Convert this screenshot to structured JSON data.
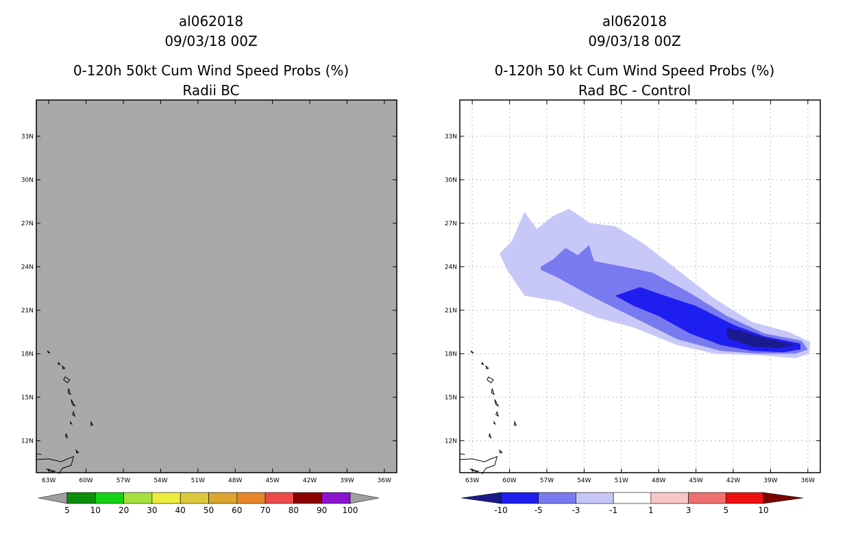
{
  "chart_data": [
    {
      "type": "heatmap",
      "storm_id": "al062018",
      "datetime": "09/03/18 00Z",
      "title": "0-120h 50kt Cum Wind Speed Probs (%)",
      "subtitle": "Radii BC",
      "background": "#a9a9a9",
      "gridlines": false,
      "x_ticks": [
        "63W",
        "60W",
        "57W",
        "54W",
        "51W",
        "48W",
        "45W",
        "42W",
        "39W",
        "36W"
      ],
      "y_ticks": [
        "12N",
        "15N",
        "18N",
        "21N",
        "24N",
        "27N",
        "30N",
        "33N"
      ],
      "lon_range": [
        -64,
        -35
      ],
      "lat_range": [
        9.8,
        35.5
      ],
      "colorbar": {
        "labels": [
          "5",
          "10",
          "20",
          "30",
          "40",
          "50",
          "60",
          "70",
          "80",
          "90",
          "100"
        ],
        "colors": [
          "#a0a0a0",
          "#0b8f0b",
          "#12d412",
          "#a6e03c",
          "#ecec3c",
          "#dcc83c",
          "#dca630",
          "#e8862c",
          "#ee4c4c",
          "#8c0000",
          "#8c12d0",
          "#a0a0a0"
        ]
      },
      "contours": []
    },
    {
      "type": "heatmap",
      "storm_id": "al062018",
      "datetime": "09/03/18 00Z",
      "title": "0-120h 50 kt Cum Wind Speed Probs (%)",
      "subtitle": "Rad BC - Control",
      "background": "#ffffff",
      "gridlines": true,
      "x_ticks": [
        "63W",
        "60W",
        "57W",
        "54W",
        "51W",
        "48W",
        "45W",
        "42W",
        "39W",
        "36W"
      ],
      "y_ticks": [
        "12N",
        "15N",
        "18N",
        "21N",
        "24N",
        "27N",
        "30N",
        "33N"
      ],
      "lon_range": [
        -64,
        -35
      ],
      "lat_range": [
        9.8,
        35.5
      ],
      "colorbar": {
        "labels": [
          "-10",
          "-5",
          "-3",
          "-1",
          "1",
          "3",
          "5",
          "10"
        ],
        "colors": [
          "#1a1a8c",
          "#1e1ef0",
          "#7a7af0",
          "#c8c8f8",
          "#ffffff",
          "#f8c6c6",
          "#f07070",
          "#ee1010",
          "#7a0000"
        ]
      },
      "contours": [
        {
          "level": "-1 to -3",
          "color": "#c8c8f8",
          "points": [
            [
              -59.8,
              25.8
            ],
            [
              -58.8,
              27.8
            ],
            [
              -57.8,
              26.6
            ],
            [
              -56.5,
              27.5
            ],
            [
              -55.2,
              28.0
            ],
            [
              -53.5,
              27.0
            ],
            [
              -51.5,
              26.8
            ],
            [
              -49.2,
              25.6
            ],
            [
              -46.5,
              23.8
            ],
            [
              -43.5,
              21.8
            ],
            [
              -40.5,
              20.2
            ],
            [
              -37.5,
              19.5
            ],
            [
              -35.8,
              18.8
            ],
            [
              -35.9,
              18.0
            ],
            [
              -37.0,
              17.7
            ],
            [
              -40.0,
              17.9
            ],
            [
              -43.5,
              18.0
            ],
            [
              -46.5,
              18.6
            ],
            [
              -50.0,
              19.8
            ],
            [
              -53.0,
              20.5
            ],
            [
              -56.0,
              21.6
            ],
            [
              -58.8,
              22.0
            ],
            [
              -60.2,
              23.8
            ],
            [
              -60.8,
              24.9
            ]
          ]
        },
        {
          "level": "-3 to -5",
          "color": "#7a7af0",
          "points": [
            [
              -57.5,
              24.0
            ],
            [
              -56.5,
              24.5
            ],
            [
              -55.5,
              25.3
            ],
            [
              -54.5,
              24.8
            ],
            [
              -53.6,
              25.5
            ],
            [
              -53.2,
              24.4
            ],
            [
              -50.8,
              24.0
            ],
            [
              -48.5,
              23.6
            ],
            [
              -45.5,
              22.2
            ],
            [
              -42.5,
              20.6
            ],
            [
              -39.5,
              19.4
            ],
            [
              -36.5,
              18.9
            ],
            [
              -36.0,
              18.3
            ],
            [
              -37.0,
              18.0
            ],
            [
              -40.0,
              18.0
            ],
            [
              -43.0,
              18.2
            ],
            [
              -46.5,
              19.0
            ],
            [
              -50.0,
              20.5
            ],
            [
              -53.5,
              22.0
            ],
            [
              -56.0,
              23.2
            ],
            [
              -57.5,
              23.8
            ]
          ]
        },
        {
          "level": "-5 to -10",
          "color": "#1e1ef0",
          "points": [
            [
              -51.5,
              22.0
            ],
            [
              -49.5,
              22.6
            ],
            [
              -47.5,
              22.0
            ],
            [
              -45.0,
              21.3
            ],
            [
              -42.0,
              20.0
            ],
            [
              -39.5,
              19.2
            ],
            [
              -36.6,
              18.7
            ],
            [
              -36.6,
              18.3
            ],
            [
              -38.0,
              18.1
            ],
            [
              -40.5,
              18.2
            ],
            [
              -43.0,
              18.6
            ],
            [
              -45.5,
              19.4
            ],
            [
              -48.0,
              20.6
            ],
            [
              -50.0,
              21.3
            ]
          ]
        },
        {
          "level": "< -10",
          "color": "#1a1a8c",
          "points": [
            [
              -42.5,
              19.8
            ],
            [
              -41.5,
              19.6
            ],
            [
              -40.0,
              19.2
            ],
            [
              -38.5,
              18.9
            ],
            [
              -37.0,
              18.6
            ],
            [
              -38.5,
              18.4
            ],
            [
              -40.5,
              18.5
            ],
            [
              -42.5,
              19.1
            ]
          ]
        }
      ]
    }
  ]
}
